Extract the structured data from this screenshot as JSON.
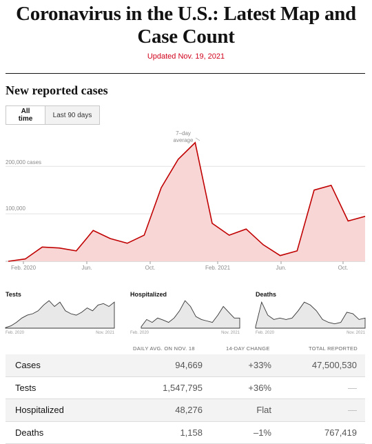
{
  "header": {
    "title": "Coronavirus in the U.S.: Latest Map and Case Count",
    "updated": "Updated Nov. 19, 2021"
  },
  "section": {
    "title": "New reported cases",
    "tabs": [
      {
        "label": "All time",
        "active": true
      },
      {
        "label": "Last 90 days",
        "active": false
      }
    ]
  },
  "chart_data": [
    {
      "type": "area",
      "title": "New reported cases",
      "x_ticks": [
        "Feb. 2020",
        "Jun.",
        "Oct.",
        "Feb. 2021",
        "Jun.",
        "Oct."
      ],
      "y_ticks": [
        "200,000 cases",
        "100,000"
      ],
      "annotation": "7-day average",
      "ylim": [
        0,
        260000
      ],
      "fill_color": "#f9d6d6",
      "line_color": "#c00000",
      "x": [
        "2020-02",
        "2020-03",
        "2020-04",
        "2020-05",
        "2020-06",
        "2020-07",
        "2020-08",
        "2020-09",
        "2020-10",
        "2020-11",
        "2020-12",
        "2021-01",
        "2021-02",
        "2021-03",
        "2021-04",
        "2021-05",
        "2021-06",
        "2021-07",
        "2021-08",
        "2021-09",
        "2021-10",
        "2021-11"
      ],
      "values": [
        0,
        5000,
        30000,
        28000,
        22000,
        65000,
        48000,
        38000,
        55000,
        155000,
        215000,
        250000,
        80000,
        55000,
        68000,
        35000,
        12000,
        22000,
        150000,
        160000,
        85000,
        94669
      ]
    },
    {
      "type": "line",
      "title": "Tests",
      "x_ticks": [
        "Feb. 2020",
        "Nov. 2021"
      ]
    },
    {
      "type": "line",
      "title": "Hospitalized",
      "x_ticks": [
        "Feb. 2020",
        "Nov. 2021"
      ]
    },
    {
      "type": "line",
      "title": "Deaths",
      "x_ticks": [
        "Feb. 2020",
        "Nov. 2021"
      ]
    }
  ],
  "table": {
    "headers": [
      "DAILY AVG. ON NOV. 18",
      "14-DAY CHANGE",
      "TOTAL REPORTED"
    ],
    "rows": [
      {
        "label": "Cases",
        "avg": "94,669",
        "change": "+33%",
        "total": "47,500,530"
      },
      {
        "label": "Tests",
        "avg": "1,547,795",
        "change": "+36%",
        "total": "—"
      },
      {
        "label": "Hospitalized",
        "avg": "48,276",
        "change": "Flat",
        "total": "—"
      },
      {
        "label": "Deaths",
        "avg": "1,158",
        "change": "–1%",
        "total": "767,419"
      }
    ]
  }
}
